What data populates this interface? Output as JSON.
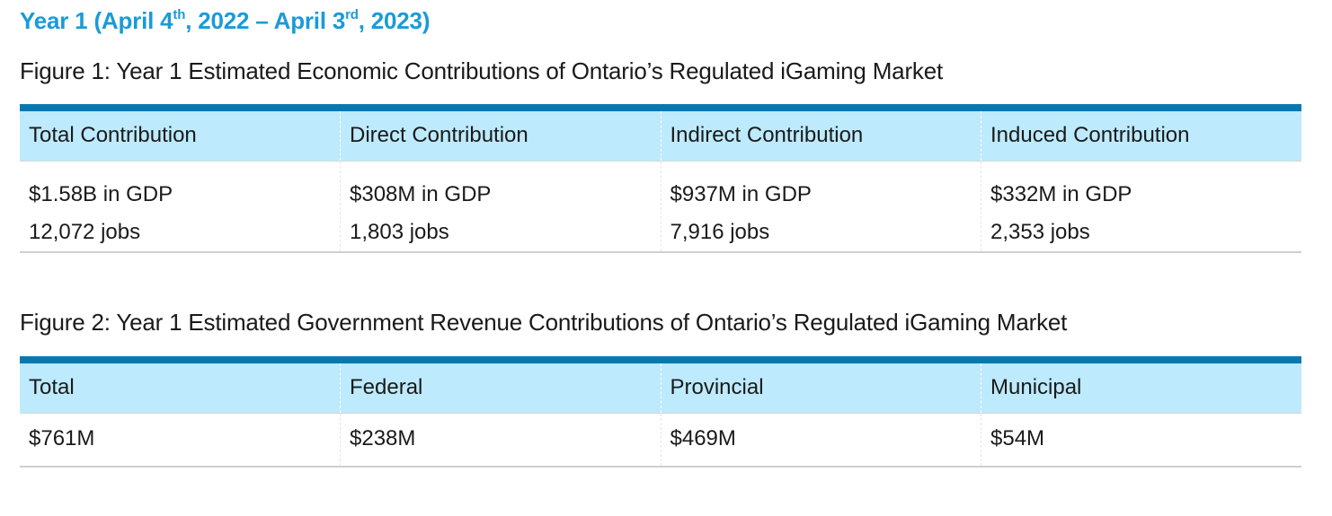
{
  "heading": {
    "part1": "Year 1 (April 4",
    "sup1": "th",
    "part2": ", 2022 – April 3",
    "sup2": "rd",
    "part3": ", 2023)"
  },
  "figure1": {
    "title": "Figure 1: Year 1 Estimated Economic Contributions of Ontario’s Regulated iGaming Market",
    "headers": [
      "Total Contribution",
      "Direct Contribution",
      "Indirect Contribution",
      "Induced Contribution"
    ],
    "cells": [
      {
        "gdp": "$1.58B in GDP",
        "jobs": "12,072 jobs"
      },
      {
        "gdp": "$308M in GDP",
        "jobs": "1,803 jobs"
      },
      {
        "gdp": "$937M in GDP",
        "jobs": "7,916 jobs"
      },
      {
        "gdp": "$332M in GDP",
        "jobs": "2,353 jobs"
      }
    ]
  },
  "figure2": {
    "title": "Figure 2: Year 1 Estimated Government Revenue Contributions of Ontario’s Regulated iGaming Market",
    "headers": [
      "Total",
      "Federal",
      "Provincial",
      "Municipal"
    ],
    "values": [
      "$761M",
      "$238M",
      "$469M",
      "$54M"
    ]
  },
  "colors": {
    "heading": "#1a9bd7",
    "header_fill": "#bdeafc",
    "header_rule": "#0a78b0"
  }
}
